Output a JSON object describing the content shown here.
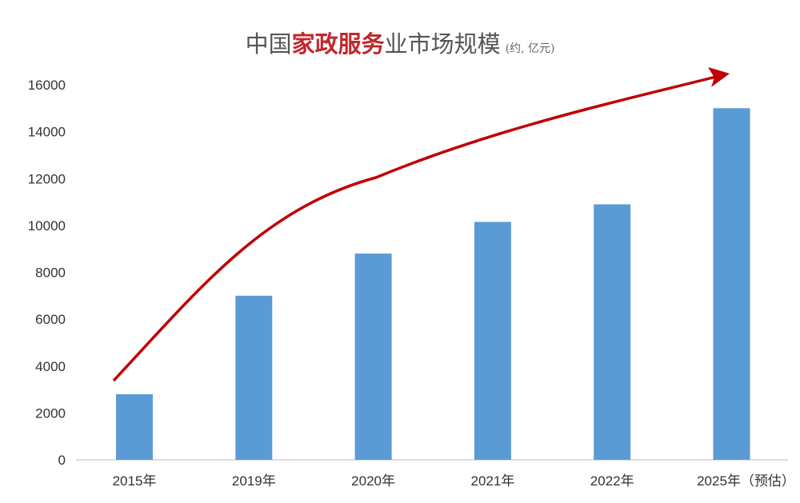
{
  "chart_data": {
    "type": "bar",
    "title_parts": [
      {
        "text": "中国",
        "highlight": false
      },
      {
        "text": "家政服务",
        "highlight": true
      },
      {
        "text": "业市场规模",
        "highlight": false
      }
    ],
    "unit": "(约, 亿元)",
    "categories": [
      "2015年",
      "2019年",
      "2020年",
      "2021年",
      "2022年",
      "2025年（预估）"
    ],
    "values": [
      2800,
      7000,
      8800,
      10150,
      10900,
      15000
    ],
    "ylim": [
      0,
      16000
    ],
    "yticks": [
      0,
      2000,
      4000,
      6000,
      8000,
      10000,
      12000,
      14000,
      16000
    ],
    "grid": false,
    "legend": "none",
    "annotation": "red upward-trend arrow",
    "colors": {
      "bar": "#5b9bd5",
      "arrow": "#c00000",
      "highlight": "#c0282c"
    }
  }
}
